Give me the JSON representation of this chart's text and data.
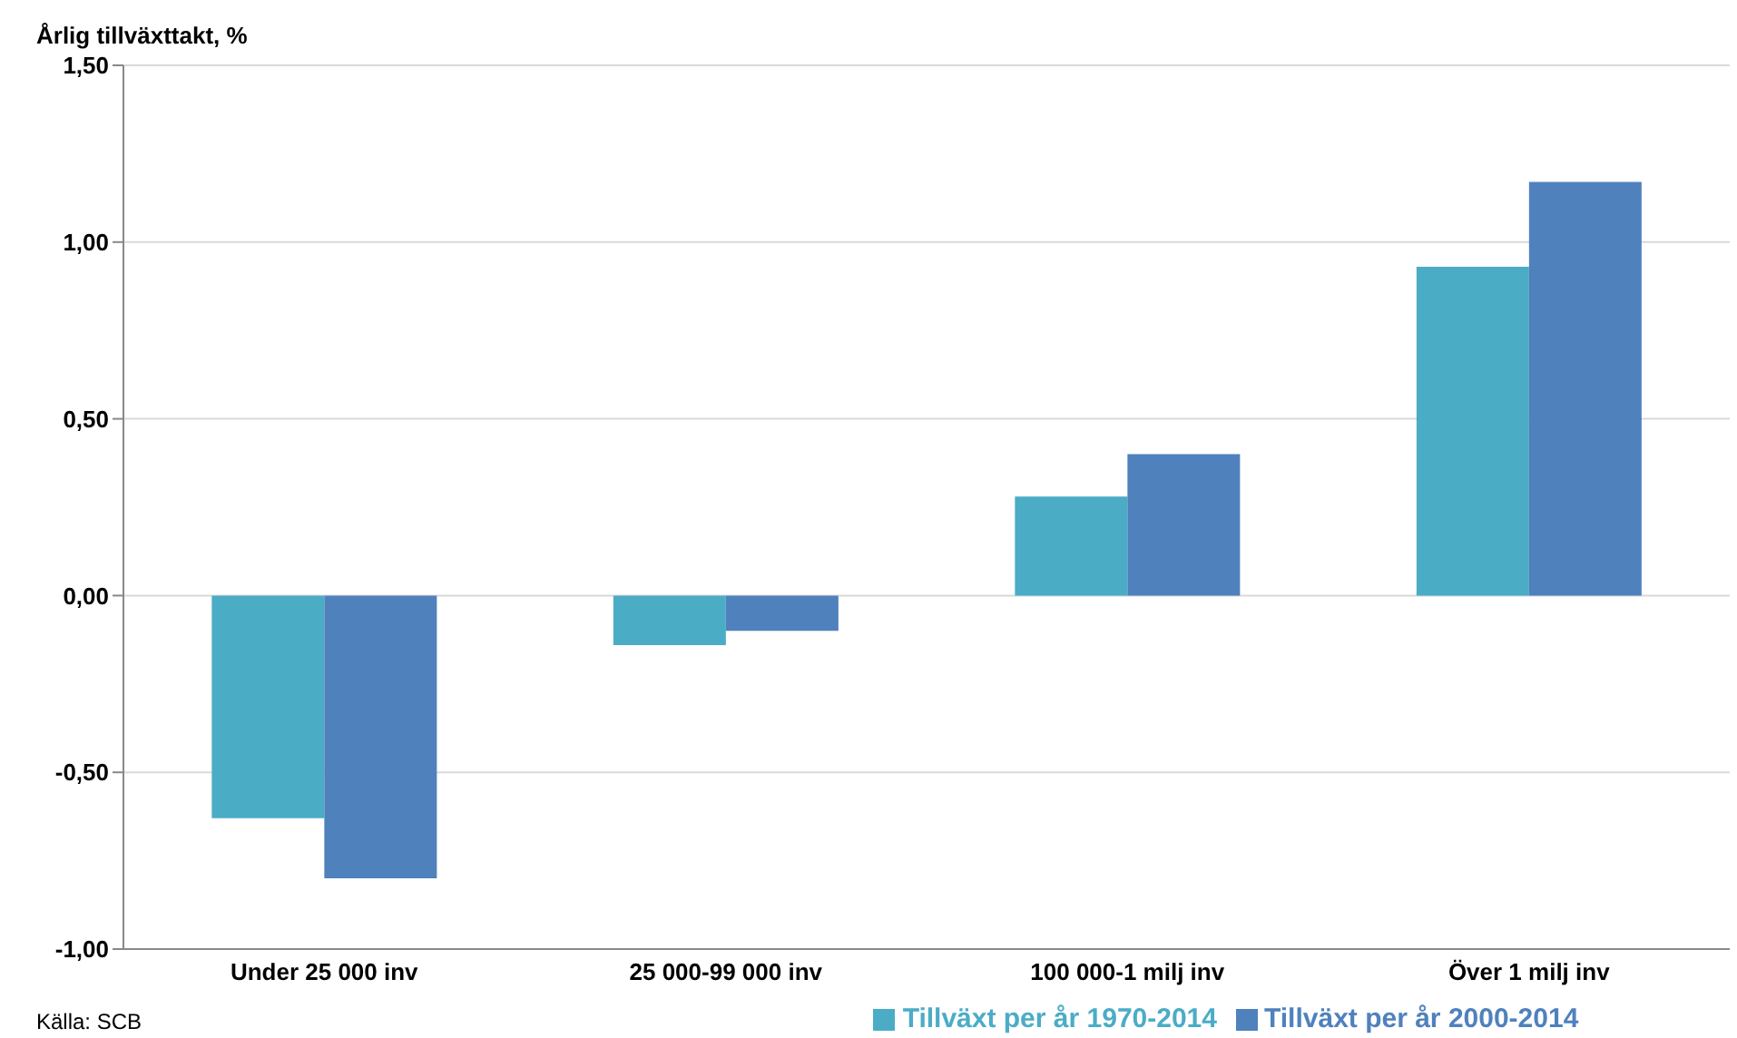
{
  "chart_data": {
    "type": "bar",
    "ylabel": "Årlig tillväxttakt, %",
    "annotations": [
      "Källa: SCB"
    ],
    "categories": [
      "Under 25 000 inv",
      "25 000-99 000 inv",
      "100 000-1 milj inv",
      "Över 1 milj inv"
    ],
    "series": [
      {
        "name": "Tillväxt per år 1970-2014",
        "color": "#4bacc6",
        "values": [
          -0.63,
          -0.14,
          0.28,
          0.93
        ]
      },
      {
        "name": "Tillväxt per år 2000-2014",
        "color": "#4f81bd",
        "values": [
          -0.8,
          -0.1,
          0.4,
          1.17
        ]
      }
    ],
    "ylim": [
      -1,
      1.5
    ],
    "yticks": [
      {
        "value": -1,
        "label": "-1,00"
      },
      {
        "value": -0.5,
        "label": "-0,50"
      },
      {
        "value": 0,
        "label": "0,00"
      },
      {
        "value": 0.5,
        "label": "0,50"
      },
      {
        "value": 1,
        "label": "1,00"
      },
      {
        "value": 1.5,
        "label": "1,50"
      }
    ],
    "grid": "y",
    "legend": "bottom"
  }
}
